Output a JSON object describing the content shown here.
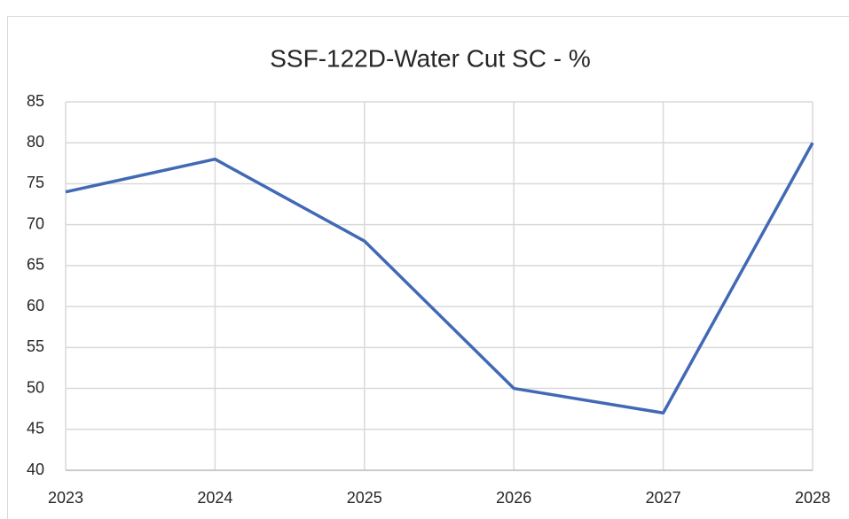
{
  "chart_data": {
    "type": "line",
    "title": "SSF-122D-Water Cut SC - %",
    "x": [
      2023,
      2024,
      2025,
      2026,
      2027,
      2028
    ],
    "series": [
      {
        "color": "#4169b4",
        "values": [
          74,
          78,
          68,
          50,
          47,
          80
        ]
      }
    ],
    "xlim": [
      2023,
      2028
    ],
    "xticks": [
      2023,
      2024,
      2025,
      2026,
      2027,
      2028
    ],
    "ylim": [
      40,
      85
    ],
    "yticks": [
      40,
      45,
      50,
      55,
      60,
      65,
      70,
      75,
      80,
      85
    ],
    "grid": true
  }
}
